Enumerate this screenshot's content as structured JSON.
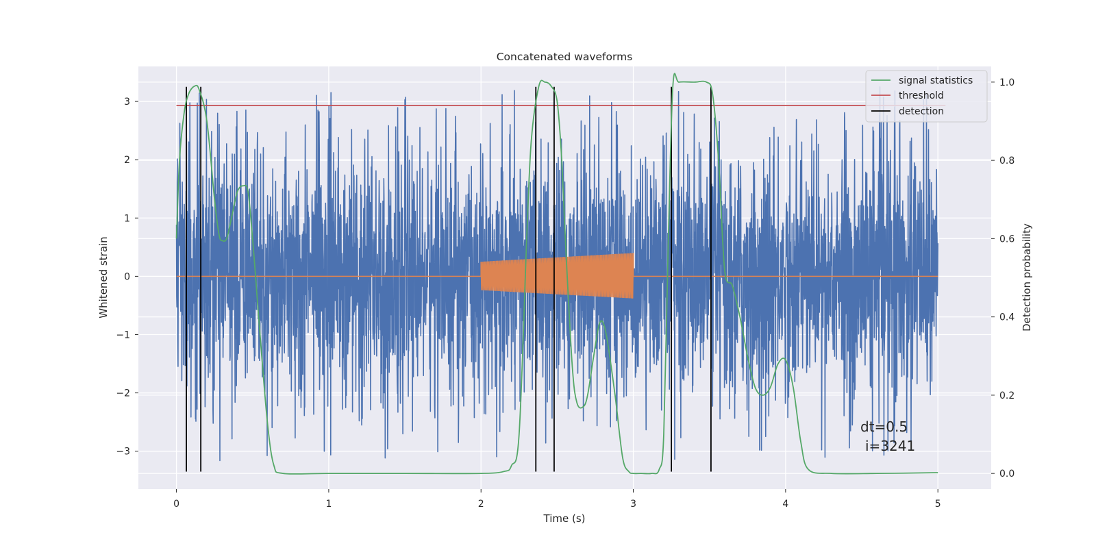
{
  "chart_data": {
    "type": "line",
    "title": "Concatenated waveforms",
    "xlabel": "Time (s)",
    "ylabel": "Whitened strain",
    "y2label": "Detection probability",
    "xlim": [
      -0.25,
      5.35
    ],
    "ylim": [
      -3.65,
      3.6
    ],
    "y2lim": [
      -0.04,
      1.04
    ],
    "x_ticks": [
      0,
      1,
      2,
      3,
      4,
      5
    ],
    "y_ticks": [
      -3,
      -2,
      -1,
      0,
      1,
      2,
      3
    ],
    "y2_ticks": [
      0.0,
      0.2,
      0.4,
      0.6,
      0.8,
      1.0
    ],
    "x_tick_labels": [
      "0",
      "1",
      "2",
      "3",
      "4",
      "5"
    ],
    "y_tick_labels": [
      "−3",
      "−2",
      "−1",
      "0",
      "1",
      "2",
      "3"
    ],
    "y2_tick_labels": [
      "0.0",
      "0.2",
      "0.4",
      "0.6",
      "0.8",
      "1.0"
    ],
    "grid": true,
    "legend_position": "top-right",
    "legend": [
      "signal statistics",
      "threshold",
      "detection"
    ],
    "series": [
      {
        "name": "",
        "kind": "noise-strain",
        "color": "#4c72b0",
        "x_range": [
          0,
          5
        ],
        "value_range": [
          -3.35,
          3.25
        ],
        "typical_band": [
          -0.7,
          0.7
        ]
      },
      {
        "name": "",
        "kind": "injected-chirp",
        "color": "#dd8452",
        "x_range": [
          0,
          5
        ],
        "chirp_window": [
          2.0,
          3.0
        ],
        "amplitude_start": 0.25,
        "amplitude_end": 0.4
      },
      {
        "name": "signal statistics",
        "axis": "right",
        "color": "#55a868",
        "x": [
          0.0,
          0.02,
          0.05,
          0.08,
          0.12,
          0.15,
          0.2,
          0.25,
          0.28,
          0.3,
          0.33,
          0.36,
          0.4,
          0.44,
          0.47,
          0.5,
          0.53,
          0.56,
          0.6,
          0.64,
          0.7,
          1.0,
          1.5,
          2.0,
          2.15,
          2.2,
          2.25,
          2.3,
          2.33,
          2.38,
          2.42,
          2.46,
          2.5,
          2.53,
          2.56,
          2.6,
          2.63,
          2.67,
          2.7,
          2.74,
          2.78,
          2.82,
          2.88,
          2.93,
          2.97,
          3.0,
          3.05,
          3.12,
          3.17,
          3.2,
          3.23,
          3.26,
          3.3,
          3.4,
          3.48,
          3.52,
          3.56,
          3.6,
          3.65,
          3.7,
          3.75,
          3.8,
          3.85,
          3.9,
          3.95,
          4.0,
          4.05,
          4.1,
          4.15,
          4.3,
          4.6,
          5.0
        ],
        "y": [
          0.6,
          0.8,
          0.92,
          0.97,
          0.99,
          0.98,
          0.9,
          0.7,
          0.61,
          0.595,
          0.6,
          0.65,
          0.72,
          0.735,
          0.72,
          0.6,
          0.45,
          0.3,
          0.12,
          0.02,
          0.0,
          0.0,
          0.0,
          0.0,
          0.005,
          0.02,
          0.1,
          0.6,
          0.85,
          0.99,
          1.0,
          0.99,
          0.95,
          0.8,
          0.55,
          0.27,
          0.18,
          0.17,
          0.2,
          0.3,
          0.385,
          0.36,
          0.2,
          0.04,
          0.005,
          0.0,
          0.0,
          0.0,
          0.01,
          0.1,
          0.6,
          0.99,
          1.0,
          1.0,
          1.0,
          0.97,
          0.8,
          0.52,
          0.48,
          0.4,
          0.3,
          0.22,
          0.2,
          0.22,
          0.28,
          0.29,
          0.22,
          0.08,
          0.01,
          0.0,
          0.0,
          0.002
        ]
      },
      {
        "name": "threshold",
        "axis": "left",
        "color": "#c44e52",
        "x": [
          0,
          5.05
        ],
        "y": [
          2.93,
          2.93
        ]
      },
      {
        "name": "detection",
        "axis": "left",
        "color": "#000000",
        "vlines_x": [
          0.065,
          0.16,
          2.36,
          2.48,
          3.25,
          3.51
        ],
        "vline_range": [
          -3.35,
          3.25
        ]
      }
    ],
    "annotations": [
      "dt=0.5",
      "i=3241"
    ]
  }
}
